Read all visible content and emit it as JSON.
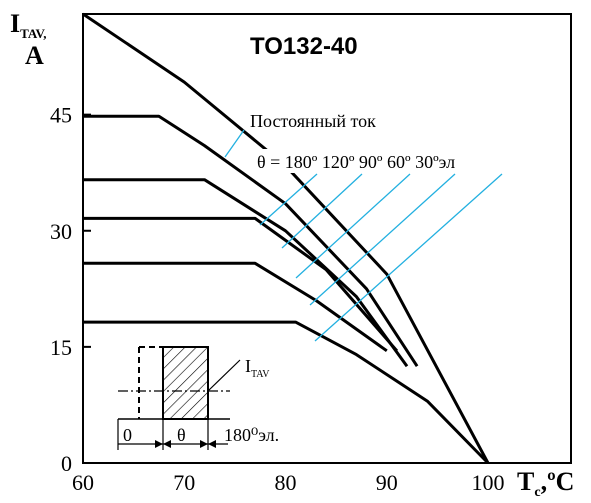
{
  "chart_data": {
    "type": "line",
    "title": "TO132-40",
    "ylabel_main": "I",
    "ylabel_sub": "TAV,",
    "ylabel_unit": "A",
    "xlabel_main": "T",
    "xlabel_sub": "c",
    "xlabel_unit": ",ºC",
    "xlim": [
      60,
      100
    ],
    "ylim": [
      0,
      58
    ],
    "x_ticks": [
      60,
      70,
      80,
      90,
      100
    ],
    "y_ticks": [
      0,
      15,
      30,
      45
    ],
    "dc_label": "Постоянный ток",
    "theta_label": "θ = 180º 120º 90º 60º 30ºэл",
    "series": [
      {
        "name": "Постоянный ток",
        "points": [
          [
            60,
            58
          ],
          [
            70,
            49.2
          ],
          [
            80,
            38.4
          ],
          [
            90,
            24.4
          ],
          [
            100,
            0
          ]
        ]
      },
      {
        "name": "180º",
        "points": [
          [
            60,
            44.8
          ],
          [
            67.5,
            44.8
          ],
          [
            72,
            41
          ],
          [
            80,
            33.5
          ],
          [
            88,
            22.5
          ],
          [
            93,
            12.5
          ]
        ]
      },
      {
        "name": "120º",
        "points": [
          [
            60,
            36.6
          ],
          [
            72,
            36.6
          ],
          [
            80,
            30
          ],
          [
            87,
            21.5
          ],
          [
            92,
            12.5
          ]
        ]
      },
      {
        "name": "90º",
        "points": [
          [
            60,
            31.6
          ],
          [
            77,
            31.6
          ],
          [
            84,
            25
          ],
          [
            91,
            14.5
          ]
        ]
      },
      {
        "name": "60º",
        "points": [
          [
            60,
            25.8
          ],
          [
            77,
            25.8
          ],
          [
            83,
            21
          ],
          [
            90,
            14.5
          ]
        ]
      },
      {
        "name": "30º",
        "points": [
          [
            60,
            18.2
          ],
          [
            81,
            18.2
          ],
          [
            87,
            14
          ],
          [
            94,
            8
          ],
          [
            100,
            0
          ]
        ]
      }
    ],
    "inset": {
      "label_itav_main": "I",
      "label_itav_sub": "TAV",
      "label_zero": "0",
      "label_theta": "θ",
      "label_period": "180⁰эл."
    }
  }
}
